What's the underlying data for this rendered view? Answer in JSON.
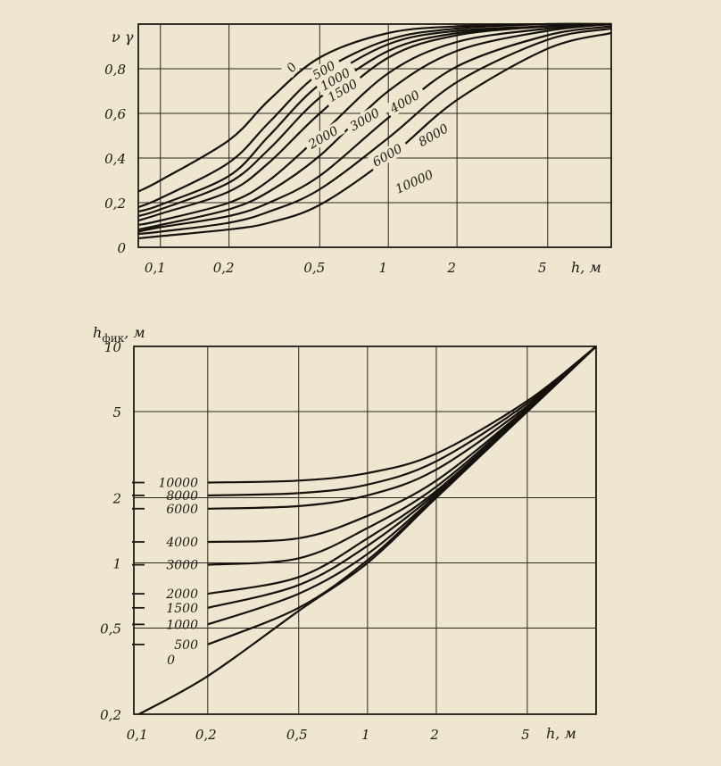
{
  "chart_data": [
    {
      "type": "line",
      "ylabel": "ν γ",
      "xlabel": "h, м",
      "x_scale": "log",
      "xlim": [
        0.08,
        9.5
      ],
      "ylim": [
        0,
        1.0
      ],
      "x_ticks": [
        "0,1",
        "0,2",
        "0,5",
        "1",
        "2",
        "5"
      ],
      "y_ticks": [
        "0",
        "0,2",
        "0,4",
        "0,6",
        "0,8"
      ],
      "grid": true,
      "series": [
        {
          "name": "0",
          "x": [
            0.08,
            0.1,
            0.2,
            0.3,
            0.5,
            1,
            2,
            5,
            9.5
          ],
          "y": [
            0.25,
            0.3,
            0.48,
            0.66,
            0.85,
            0.96,
            0.99,
            1.0,
            1.0
          ]
        },
        {
          "name": "500",
          "x": [
            0.08,
            0.1,
            0.2,
            0.3,
            0.5,
            1,
            2,
            5,
            9.5
          ],
          "y": [
            0.18,
            0.22,
            0.38,
            0.56,
            0.78,
            0.93,
            0.98,
            1.0,
            1.0
          ]
        },
        {
          "name": "1000",
          "x": [
            0.08,
            0.1,
            0.2,
            0.3,
            0.5,
            1,
            2,
            5,
            9.5
          ],
          "y": [
            0.16,
            0.19,
            0.32,
            0.5,
            0.73,
            0.91,
            0.97,
            0.99,
            1.0
          ]
        },
        {
          "name": "1500",
          "x": [
            0.08,
            0.1,
            0.2,
            0.3,
            0.5,
            1,
            2,
            5,
            9.5
          ],
          "y": [
            0.14,
            0.17,
            0.29,
            0.44,
            0.67,
            0.88,
            0.96,
            0.99,
            1.0
          ]
        },
        {
          "name": "2000",
          "x": [
            0.08,
            0.1,
            0.2,
            0.3,
            0.5,
            1,
            2,
            5,
            9.5
          ],
          "y": [
            0.12,
            0.15,
            0.25,
            0.38,
            0.6,
            0.85,
            0.95,
            0.99,
            1.0
          ]
        },
        {
          "name": "3000",
          "x": [
            0.08,
            0.1,
            0.2,
            0.3,
            0.5,
            1,
            2,
            5,
            9.5
          ],
          "y": [
            0.1,
            0.12,
            0.2,
            0.3,
            0.5,
            0.78,
            0.92,
            0.98,
            1.0
          ]
        },
        {
          "name": "4000",
          "x": [
            0.08,
            0.1,
            0.2,
            0.3,
            0.5,
            1,
            2,
            5,
            9.5
          ],
          "y": [
            0.08,
            0.1,
            0.17,
            0.25,
            0.41,
            0.7,
            0.88,
            0.97,
            1.0
          ]
        },
        {
          "name": "6000",
          "x": [
            0.08,
            0.1,
            0.2,
            0.3,
            0.5,
            1,
            2,
            5,
            9.5
          ],
          "y": [
            0.07,
            0.09,
            0.14,
            0.2,
            0.32,
            0.58,
            0.81,
            0.95,
            0.99
          ]
        },
        {
          "name": "8000",
          "x": [
            0.08,
            0.1,
            0.2,
            0.3,
            0.5,
            1,
            2,
            5,
            9.5
          ],
          "y": [
            0.06,
            0.07,
            0.11,
            0.16,
            0.26,
            0.49,
            0.74,
            0.93,
            0.98
          ]
        },
        {
          "name": "10000",
          "x": [
            0.08,
            0.1,
            0.2,
            0.3,
            0.5,
            1,
            2,
            5,
            9.5
          ],
          "y": [
            0.04,
            0.05,
            0.08,
            0.11,
            0.19,
            0.4,
            0.66,
            0.89,
            0.96
          ]
        }
      ]
    },
    {
      "type": "line",
      "ylabel": "h",
      "ylabel_sub": "фик",
      "ylabel_unit": ", м",
      "xlabel": "h, м",
      "x_scale": "log",
      "y_scale": "log",
      "xlim": [
        0.095,
        10
      ],
      "ylim": [
        0.2,
        10
      ],
      "x_ticks": [
        "0,1",
        "0,2",
        "0,5",
        "1",
        "2",
        "5"
      ],
      "y_ticks": [
        "0,2",
        "0,5",
        "1",
        "2",
        "5",
        "10"
      ],
      "grid": true,
      "series": [
        {
          "name": "0",
          "x": [
            0.1,
            0.2,
            0.5,
            1,
            2,
            5,
            10
          ],
          "y": [
            0.2,
            0.3,
            0.6,
            1.0,
            2.0,
            5.0,
            10
          ]
        },
        {
          "name": "500",
          "x": [
            0.2,
            0.5,
            1,
            2,
            5,
            10
          ],
          "y": [
            0.42,
            0.62,
            1.03,
            2.02,
            5.0,
            10
          ]
        },
        {
          "name": "1000",
          "x": [
            0.2,
            0.5,
            1,
            2,
            5,
            10
          ],
          "y": [
            0.52,
            0.72,
            1.1,
            2.05,
            5.0,
            10
          ]
        },
        {
          "name": "1500",
          "x": [
            0.2,
            0.5,
            1,
            2,
            5,
            10
          ],
          "y": [
            0.62,
            0.79,
            1.2,
            2.1,
            5.05,
            10
          ]
        },
        {
          "name": "2000",
          "x": [
            0.2,
            0.5,
            1,
            2,
            5,
            10
          ],
          "y": [
            0.72,
            0.86,
            1.3,
            2.15,
            5.1,
            10
          ]
        },
        {
          "name": "3000",
          "x": [
            0.2,
            0.5,
            1,
            2,
            5,
            10
          ],
          "y": [
            0.98,
            1.05,
            1.45,
            2.25,
            5.15,
            10
          ]
        },
        {
          "name": "4000",
          "x": [
            0.2,
            0.5,
            1,
            2,
            5,
            10
          ],
          "y": [
            1.25,
            1.3,
            1.65,
            2.4,
            5.2,
            10
          ]
        },
        {
          "name": "6000",
          "x": [
            0.2,
            0.5,
            1,
            2,
            5,
            10
          ],
          "y": [
            1.78,
            1.83,
            2.05,
            2.7,
            5.3,
            10
          ]
        },
        {
          "name": "8000",
          "x": [
            0.2,
            0.5,
            1,
            2,
            5,
            10
          ],
          "y": [
            2.05,
            2.1,
            2.3,
            2.95,
            5.45,
            10
          ]
        },
        {
          "name": "10000",
          "x": [
            0.2,
            0.5,
            1,
            2,
            5,
            10
          ],
          "y": [
            2.35,
            2.4,
            2.6,
            3.2,
            5.6,
            10
          ]
        }
      ]
    }
  ]
}
